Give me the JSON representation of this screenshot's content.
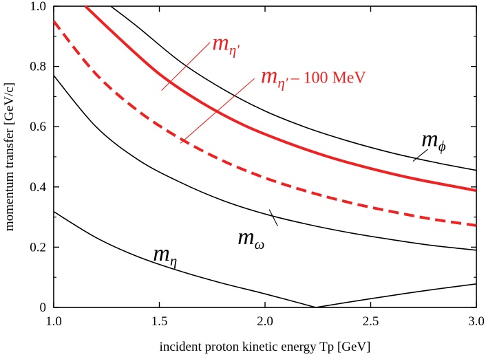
{
  "chart_data": {
    "type": "line",
    "title": "",
    "xlabel": "incident proton kinetic energy Tp [GeV]",
    "ylabel": "momentum transfer [GeV/c]",
    "xlim": [
      1.0,
      3.0
    ],
    "ylim": [
      0,
      1.0
    ],
    "x_ticks": [
      "1.0",
      "1.5",
      "2.0",
      "2.5",
      "3.0"
    ],
    "y_ticks": [
      "0",
      "0.2",
      "0.4",
      "0.6",
      "0.8",
      "1.0"
    ],
    "series": [
      {
        "name": "m_phi",
        "label_main": "m",
        "label_sub": "ϕ",
        "color": "#000000",
        "style": "solid",
        "x": [
          1.27,
          1.4,
          1.6,
          1.8,
          2.0,
          2.2,
          2.4,
          2.6,
          2.8,
          3.0
        ],
        "y": [
          1.0,
          0.93,
          0.815,
          0.725,
          0.652,
          0.596,
          0.551,
          0.513,
          0.482,
          0.455
        ]
      },
      {
        "name": "m_eta_prime",
        "label_main": "m",
        "label_sub": "η′",
        "color": "#ee2222",
        "style": "solid",
        "x": [
          1.15,
          1.3,
          1.5,
          1.7,
          1.9,
          2.1,
          2.3,
          2.5,
          2.7,
          2.9,
          3.0
        ],
        "y": [
          1.0,
          0.9,
          0.775,
          0.68,
          0.605,
          0.548,
          0.5,
          0.461,
          0.428,
          0.401,
          0.388
        ]
      },
      {
        "name": "m_eta_prime_minus_100",
        "label_main": "m",
        "label_sub": "η′",
        "label_extra": "– 100 MeV",
        "color": "#ee2222",
        "style": "dashed",
        "x": [
          1.0,
          1.2,
          1.4,
          1.6,
          1.8,
          2.0,
          2.2,
          2.4,
          2.6,
          2.8,
          3.0
        ],
        "y": [
          0.95,
          0.775,
          0.652,
          0.56,
          0.487,
          0.43,
          0.385,
          0.348,
          0.318,
          0.292,
          0.272
        ]
      },
      {
        "name": "m_omega",
        "label_main": "m",
        "label_sub": "ω",
        "color": "#000000",
        "style": "solid",
        "x": [
          1.0,
          1.2,
          1.4,
          1.6,
          1.8,
          2.0,
          2.2,
          2.4,
          2.6,
          2.8,
          3.0
        ],
        "y": [
          0.77,
          0.6,
          0.49,
          0.415,
          0.355,
          0.31,
          0.276,
          0.248,
          0.225,
          0.205,
          0.19
        ]
      },
      {
        "name": "m_eta",
        "label_main": "m",
        "label_sub": "η",
        "color": "#000000",
        "style": "solid",
        "x": [
          1.0,
          1.2,
          1.4,
          1.6,
          1.8,
          2.0,
          2.24,
          2.5,
          2.75,
          3.0
        ],
        "y": [
          0.318,
          0.232,
          0.168,
          0.12,
          0.08,
          0.045,
          0.0,
          0.029,
          0.055,
          0.078
        ]
      }
    ]
  }
}
